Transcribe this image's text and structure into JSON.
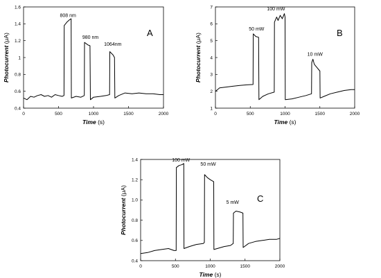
{
  "chart_data": [
    {
      "type": "line",
      "panel_label": "A",
      "xlabel": "Time",
      "xunit": "(s)",
      "ylabel": "Photocurrent",
      "yunit": "(μA)",
      "xlim": [
        0,
        2000
      ],
      "ylim": [
        0.4,
        1.6
      ],
      "xticks": [
        0,
        500,
        1000,
        1500,
        2000
      ],
      "yticks": [
        0.4,
        0.6,
        0.8,
        1.0,
        1.2,
        1.4,
        1.6
      ],
      "ytick_labels": [
        "0.4",
        "0.6",
        "0.8",
        "1",
        "1.2",
        "1.4",
        "1.6"
      ],
      "annotations": [
        {
          "text": "808 nm",
          "x": 520,
          "y": 1.48
        },
        {
          "text": "980 nm",
          "x": 840,
          "y": 1.22
        },
        {
          "text": "1064nm",
          "x": 1150,
          "y": 1.14
        }
      ],
      "series": [
        {
          "x": [
            0,
            50,
            100,
            150,
            200,
            250,
            300,
            350,
            400,
            450,
            500,
            550,
            578,
            581,
            620,
            660,
            680,
            683,
            750,
            820,
            868,
            871,
            920,
            950,
            955,
            1000,
            1100,
            1180,
            1230,
            1233,
            1280,
            1300,
            1305,
            1360,
            1450,
            1550,
            1650,
            1750,
            1850,
            1950,
            2000
          ],
          "y": [
            0.52,
            0.5,
            0.54,
            0.53,
            0.55,
            0.56,
            0.54,
            0.55,
            0.53,
            0.56,
            0.55,
            0.54,
            0.55,
            1.38,
            1.42,
            1.45,
            1.46,
            0.52,
            0.54,
            0.53,
            0.55,
            1.18,
            1.15,
            1.14,
            0.5,
            0.53,
            0.54,
            0.55,
            0.56,
            1.07,
            1.03,
            1.0,
            0.52,
            0.55,
            0.58,
            0.57,
            0.58,
            0.57,
            0.57,
            0.56,
            0.56
          ]
        }
      ]
    },
    {
      "type": "line",
      "panel_label": "B",
      "xlabel": "Time",
      "xunit": "(s)",
      "ylabel": "Photocurrent",
      "yunit": "(μA)",
      "xlim": [
        0,
        2000
      ],
      "ylim": [
        1,
        7
      ],
      "xticks": [
        0,
        500,
        1000,
        1500,
        2000
      ],
      "yticks": [
        1,
        2,
        3,
        4,
        5,
        6,
        7
      ],
      "ytick_labels": [
        "1",
        "2",
        "3",
        "4",
        "5",
        "6",
        "7"
      ],
      "annotations": [
        {
          "text": "50 mW",
          "x": 480,
          "y": 5.6
        },
        {
          "text": "100 mW",
          "x": 740,
          "y": 6.8
        },
        {
          "text": "10 mW",
          "x": 1320,
          "y": 4.1
        }
      ],
      "series": [
        {
          "x": [
            0,
            60,
            150,
            250,
            350,
            450,
            540,
            543,
            580,
            620,
            625,
            680,
            760,
            845,
            848,
            880,
            900,
            930,
            960,
            990,
            1000,
            1003,
            1100,
            1200,
            1300,
            1380,
            1383,
            1400,
            1420,
            1440,
            1460,
            1480,
            1500,
            1503,
            1560,
            1650,
            1750,
            1850,
            1950,
            2000
          ],
          "y": [
            2.0,
            2.2,
            2.25,
            2.3,
            2.35,
            2.38,
            2.4,
            5.4,
            5.25,
            5.2,
            1.5,
            1.7,
            1.85,
            1.95,
            6.1,
            6.4,
            6.2,
            6.5,
            6.3,
            6.6,
            6.4,
            1.5,
            1.55,
            1.65,
            1.75,
            1.85,
            3.7,
            3.9,
            3.6,
            3.5,
            3.4,
            3.3,
            3.2,
            1.6,
            1.7,
            1.85,
            1.95,
            2.05,
            2.1,
            2.1
          ]
        }
      ]
    },
    {
      "type": "line",
      "panel_label": "C",
      "xlabel": "Time",
      "xunit": "(s)",
      "ylabel": "Photocurrent",
      "yunit": "(μA)",
      "xlim": [
        0,
        2000
      ],
      "ylim": [
        0.4,
        1.4
      ],
      "xticks": [
        0,
        500,
        1000,
        1500,
        2000
      ],
      "yticks": [
        0.4,
        0.6,
        0.8,
        1.0,
        1.2,
        1.4
      ],
      "ytick_labels": [
        "0.4",
        "0.6",
        "0.8",
        "1.0",
        "1.2",
        "1.4"
      ],
      "annotations": [
        {
          "text": "100 mW",
          "x": 450,
          "y": 1.38
        },
        {
          "text": "50 mW",
          "x": 860,
          "y": 1.34
        },
        {
          "text": "5 mW",
          "x": 1230,
          "y": 0.96
        }
      ],
      "series": [
        {
          "x": [
            0,
            100,
            200,
            300,
            400,
            480,
            510,
            513,
            550,
            600,
            620,
            623,
            700,
            800,
            900,
            915,
            918,
            960,
            1000,
            1050,
            1053,
            1100,
            1200,
            1290,
            1330,
            1333,
            1370,
            1430,
            1470,
            1473,
            1550,
            1650,
            1750,
            1850,
            1950,
            2000
          ],
          "y": [
            0.47,
            0.48,
            0.5,
            0.51,
            0.52,
            0.5,
            0.5,
            1.32,
            1.34,
            1.35,
            1.36,
            0.52,
            0.54,
            0.56,
            0.57,
            0.58,
            1.25,
            1.22,
            1.2,
            1.18,
            0.51,
            0.52,
            0.54,
            0.55,
            0.57,
            0.87,
            0.89,
            0.88,
            0.87,
            0.53,
            0.57,
            0.59,
            0.6,
            0.61,
            0.61,
            0.62
          ]
        }
      ]
    }
  ]
}
